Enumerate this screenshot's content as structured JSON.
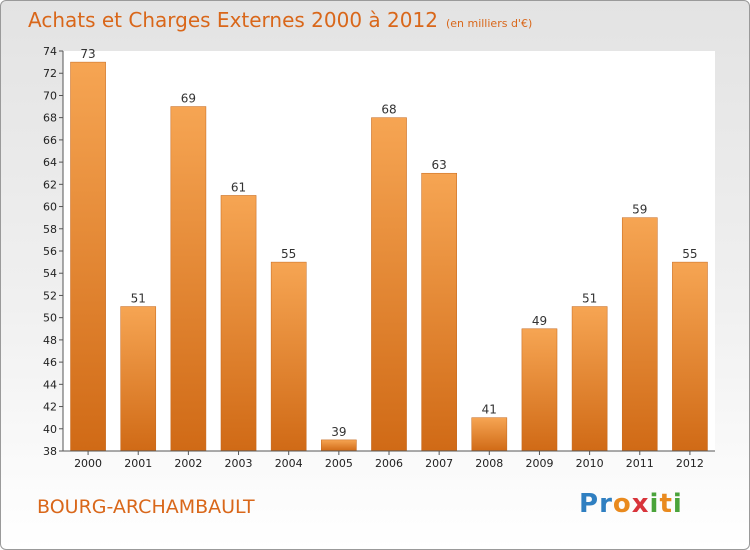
{
  "header": {
    "title": "Achats et Charges Externes 2000 à 2012",
    "unit": "(en milliers d'€)"
  },
  "footer": {
    "city": "BOURG-ARCHAMBAULT",
    "logo_letters": [
      {
        "ch": "P",
        "color": "#2f7fc1"
      },
      {
        "ch": "r",
        "color": "#2f7fc1"
      },
      {
        "ch": "o",
        "color": "#e98a1e"
      },
      {
        "ch": "x",
        "color": "#d8343b"
      },
      {
        "ch": "i",
        "color": "#4aa33a"
      },
      {
        "ch": "t",
        "color": "#e98a1e"
      },
      {
        "ch": "i",
        "color": "#4aa33a"
      }
    ]
  },
  "chart_data": {
    "type": "bar",
    "title": "Achats et Charges Externes 2000 à 2012",
    "subtitle": "(en milliers d'€)",
    "categories": [
      "2000",
      "2001",
      "2002",
      "2003",
      "2004",
      "2005",
      "2006",
      "2007",
      "2008",
      "2009",
      "2010",
      "2011",
      "2012"
    ],
    "values": [
      73,
      51,
      69,
      61,
      55,
      39,
      68,
      63,
      41,
      49,
      51,
      59,
      55
    ],
    "ylim": [
      38,
      74
    ],
    "ytick_step": 2,
    "grid": false,
    "bar_color": "#e8832a"
  }
}
